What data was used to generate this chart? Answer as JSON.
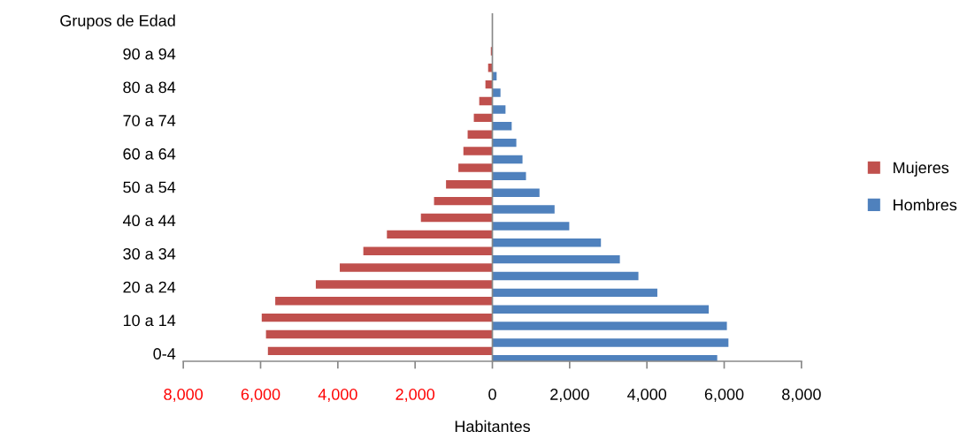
{
  "chart_data": {
    "type": "bar",
    "orientation": "horizontal",
    "xlabel": "Habitantes",
    "categories": [
      "Grupos de Edad",
      null,
      "90 a 94",
      null,
      "80 a 84",
      null,
      "70 a 74",
      null,
      "60 a 64",
      null,
      "50 a 54",
      null,
      "40 a 44",
      null,
      "30 a 34",
      null,
      "20 a 24",
      null,
      "10 a 14",
      null,
      "0-4"
    ],
    "series": [
      {
        "name": "Mujeres",
        "color": "#c0504d",
        "values": [
          null,
          null,
          -40,
          -110,
          -180,
          -340,
          -480,
          -640,
          -750,
          -880,
          -1200,
          -1510,
          -1850,
          -2730,
          -3340,
          -3950,
          -4570,
          -5620,
          -5970,
          -5860,
          -5810
        ]
      },
      {
        "name": "Hombres",
        "color": "#4f81bd",
        "values": [
          null,
          null,
          null,
          110,
          210,
          340,
          500,
          620,
          780,
          870,
          1220,
          1610,
          1990,
          2810,
          3300,
          3780,
          4270,
          5600,
          6070,
          6110,
          5820
        ]
      }
    ],
    "xlim": [
      -8000,
      8000
    ],
    "xticks": [
      {
        "value": -8000,
        "label": "8,000"
      },
      {
        "value": -6000,
        "label": "6,000"
      },
      {
        "value": -4000,
        "label": "4,000"
      },
      {
        "value": -2000,
        "label": "2,000"
      },
      0,
      {
        "value": 2000,
        "label": "2,000"
      },
      {
        "value": 4000,
        "label": "4,000"
      },
      {
        "value": 6000,
        "label": "6,000"
      },
      {
        "value": 8000,
        "label": "8,000"
      }
    ],
    "legend": "right"
  }
}
